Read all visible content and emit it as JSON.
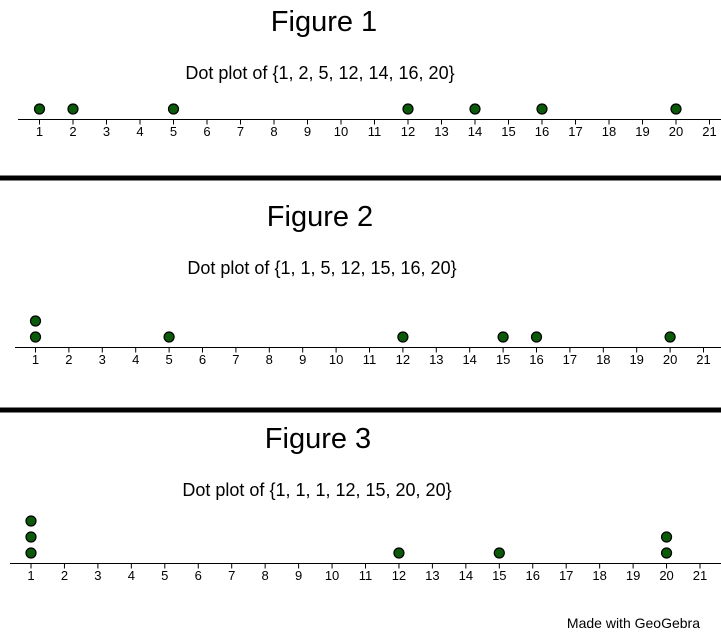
{
  "colors": {
    "dot_fill": "#0a5a0a",
    "dot_stroke": "#000000",
    "axis": "#000000",
    "separator": "#000000",
    "background": "#ffffff"
  },
  "watermark": "Made with GeoGebra",
  "chart_data": [
    {
      "type": "scatter",
      "subtype": "dot-plot",
      "title": "Figure 1",
      "subtitle": "Dot plot of {1, 2, 5, 12, 14, 16, 20}",
      "xlim": [
        1,
        21
      ],
      "xticks": [
        "1",
        "2",
        "3",
        "4",
        "5",
        "6",
        "7",
        "8",
        "9",
        "10",
        "11",
        "12",
        "13",
        "14",
        "15",
        "16",
        "17",
        "18",
        "19",
        "20",
        "21"
      ],
      "values": [
        1,
        2,
        5,
        12,
        14,
        16,
        20
      ],
      "grid": false
    },
    {
      "type": "scatter",
      "subtype": "dot-plot",
      "title": "Figure 2",
      "subtitle": "Dot plot of  {1, 1, 5, 12, 15, 16, 20}",
      "xlim": [
        1,
        21
      ],
      "xticks": [
        "1",
        "2",
        "3",
        "4",
        "5",
        "6",
        "7",
        "8",
        "9",
        "10",
        "11",
        "12",
        "13",
        "14",
        "15",
        "16",
        "17",
        "18",
        "19",
        "20",
        "21"
      ],
      "values": [
        1,
        1,
        5,
        12,
        15,
        16,
        20
      ],
      "grid": false
    },
    {
      "type": "scatter",
      "subtype": "dot-plot",
      "title": "Figure 3",
      "subtitle": "Dot plot of {1, 1, 1, 12, 15, 20, 20}",
      "xlim": [
        1,
        21
      ],
      "xticks": [
        "1",
        "2",
        "3",
        "4",
        "5",
        "6",
        "7",
        "8",
        "9",
        "10",
        "11",
        "12",
        "13",
        "14",
        "15",
        "16",
        "17",
        "18",
        "19",
        "20",
        "21"
      ],
      "values": [
        1,
        1,
        1,
        12,
        15,
        20,
        20
      ],
      "grid": false
    }
  ]
}
